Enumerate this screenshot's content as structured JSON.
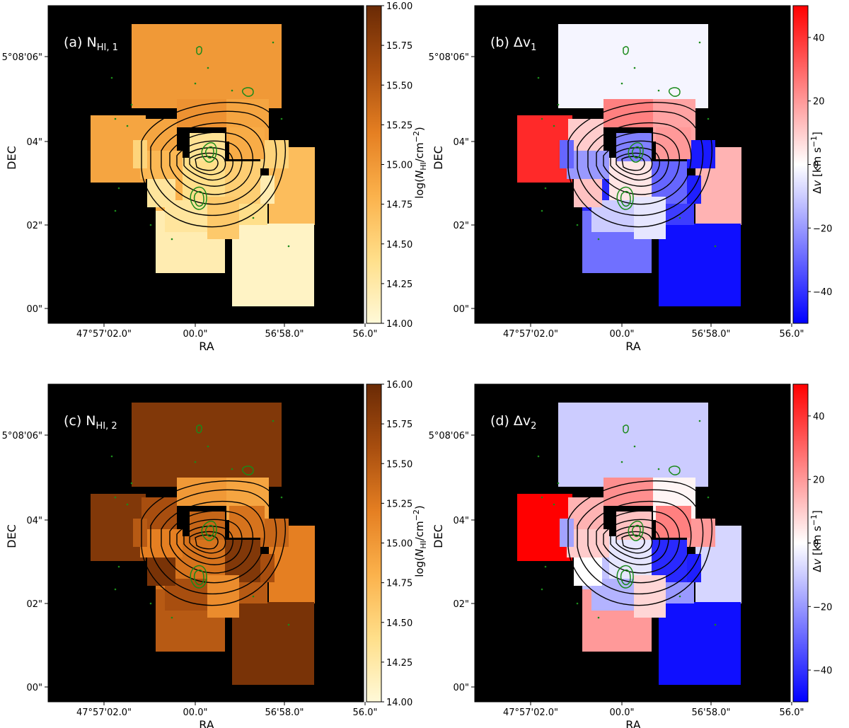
{
  "chart_data": [
    {
      "type": "heatmap",
      "panel_label": "(a) N",
      "panel_label_sub": "HI, 1",
      "xlabel": "RA",
      "ylabel": "DEC",
      "xticks": [
        "47°57'02.0\"",
        "00.0\"",
        "56'58.0\"",
        "56.0\""
      ],
      "yticks": [
        "5°08'06\"",
        "04\"",
        "02\"",
        "00\""
      ],
      "colorbar": {
        "label": "log(N_HI/cm^-2)",
        "range": [
          14.0,
          16.0
        ],
        "ticks": [
          "16.00",
          "15.75",
          "15.50",
          "15.25",
          "15.00",
          "14.75",
          "14.50",
          "14.25",
          "14.00"
        ],
        "colormap": "orange",
        "stops": [
          "#fff9d8",
          "#ffdf8a",
          "#fbb24c",
          "#e57f22",
          "#a84e0f",
          "#6a2a05"
        ]
      },
      "region_values": [
        15.0,
        14.9,
        14.7,
        14.2,
        14.1,
        14.8,
        15.1,
        14.9,
        15.05,
        14.9,
        14.75,
        14.4,
        14.55,
        14.5,
        14.3,
        14.6,
        14.4,
        14.3,
        14.35,
        14.85,
        14.2,
        14.5
      ]
    },
    {
      "type": "heatmap",
      "panel_label": "(b) Δv",
      "panel_label_sub": "1",
      "xlabel": "RA",
      "ylabel": "DEC",
      "xticks": [
        "47°57'02.0\"",
        "00.0\"",
        "56'58.0\"",
        "56.0\""
      ],
      "yticks": [
        "5°08'06\"",
        "04\"",
        "02\"",
        "00\""
      ],
      "colorbar": {
        "label": "Δv [km s^-1]",
        "range": [
          -50,
          50
        ],
        "ticks": [
          "40",
          "20",
          "0",
          "−20",
          "−40"
        ],
        "colormap": "bwr",
        "stops": [
          "#0000ff",
          "#ffffff",
          "#ff0000"
        ]
      },
      "region_values": [
        -2,
        42,
        15,
        -28,
        -47,
        -42,
        2,
        10,
        25,
        18,
        -20,
        5,
        -30,
        -45,
        -10,
        -5,
        -38,
        12,
        -25,
        20,
        -44,
        -30
      ]
    },
    {
      "type": "heatmap",
      "panel_label": "(c) N",
      "panel_label_sub": "HI, 2",
      "xlabel": "RA",
      "ylabel": "DEC",
      "xticks": [
        "47°57'02.0\"",
        "00.0\"",
        "56'58.0\"",
        "56.0\""
      ],
      "yticks": [
        "5°08'06\"",
        "04\"",
        "02\"",
        "00\""
      ],
      "colorbar": {
        "label": "log(N_HI/cm^-2)",
        "range": [
          14.0,
          16.0
        ],
        "ticks": [
          "16.00",
          "15.75",
          "15.50",
          "15.25",
          "15.00",
          "14.75",
          "14.50",
          "14.25",
          "14.00"
        ],
        "colormap": "orange",
        "stops": [
          "#fff9d8",
          "#ffdf8a",
          "#fbb24c",
          "#e57f22",
          "#a84e0f",
          "#6a2a05"
        ]
      },
      "region_values": [
        15.85,
        15.85,
        15.2,
        15.5,
        15.9,
        15.3,
        15.1,
        15.6,
        15.0,
        14.9,
        15.2,
        15.3,
        15.85,
        15.4,
        15.6,
        15.1,
        15.5,
        15.9,
        15.4,
        15.3,
        15.6,
        15.5
      ]
    },
    {
      "type": "heatmap",
      "panel_label": "(d) Δv",
      "panel_label_sub": "2",
      "xlabel": "RA",
      "ylabel": "DEC",
      "xticks": [
        "47°57'02.0\"",
        "00.0\"",
        "56'58.0\"",
        "56.0\""
      ],
      "yticks": [
        "5°08'06\"",
        "04\"",
        "02\"",
        "00\""
      ],
      "colorbar": {
        "label": "Δv [km s^-1]",
        "range": [
          -50,
          50
        ],
        "ticks": [
          "40",
          "20",
          "0",
          "−20",
          "−40"
        ],
        "colormap": "bwr",
        "stops": [
          "#0000ff",
          "#ffffff",
          "#ff0000"
        ]
      },
      "region_values": [
        -10,
        50,
        -8,
        20,
        -47,
        -12,
        3,
        15,
        22,
        2,
        10,
        -5,
        -42,
        20,
        -15,
        8,
        -20,
        0,
        12,
        25,
        -44,
        -18
      ]
    }
  ]
}
